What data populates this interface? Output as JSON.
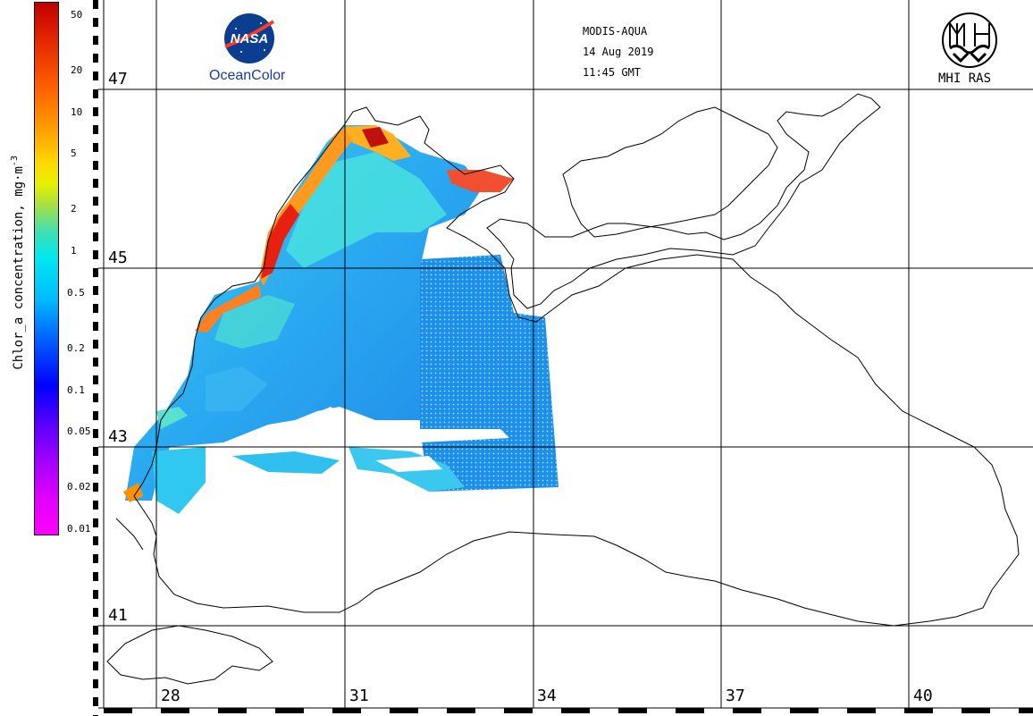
{
  "header": {
    "sensor": "MODIS-AQUA",
    "date": "14 Aug 2019",
    "time": "11:45 GMT"
  },
  "logos": {
    "nasa_icon": "nasa-meatball-logo",
    "nasa_caption": "OceanColor",
    "mhi_icon": "mhi-ras-emblem",
    "mhi_caption": "MHI RAS"
  },
  "colorbar": {
    "title": "Chlor_a concentration, mg·m",
    "title_exponent": "-3",
    "ticks": [
      "50",
      "20",
      "10",
      "5",
      "2",
      "1",
      "0.5",
      "0.2",
      "0.1",
      "0.05",
      "0.02",
      "0.01"
    ],
    "scale": "log",
    "range": [
      0.01,
      50
    ]
  },
  "grid": {
    "latitudes": [
      "47",
      "45",
      "43",
      "41"
    ],
    "longitudes": [
      "28",
      "31",
      "34",
      "37",
      "40"
    ]
  },
  "colors": {
    "coast": "#000000",
    "grid": "#000000",
    "nasa_blue": "#0b3d91",
    "oceancolor_text": "#1a3aa8"
  }
}
